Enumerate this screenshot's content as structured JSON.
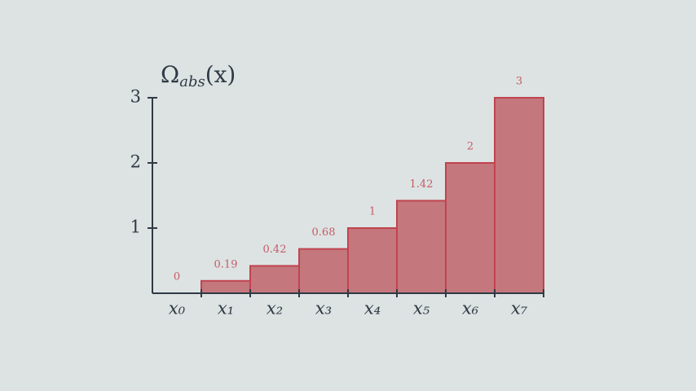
{
  "chart_data": {
    "type": "bar",
    "ylabel": "Ω",
    "ylabel_sub": "abs",
    "ylabel_rest": "(x)",
    "categories": [
      "x₀",
      "x₁",
      "x₂",
      "x₃",
      "x₄",
      "x₅",
      "x₆",
      "x₇"
    ],
    "values": [
      0,
      0.19,
      0.42,
      0.68,
      1,
      1.42,
      2,
      3
    ],
    "color": "#c4777d",
    "edge_color": "#c0444f",
    "label_color": "#c65a66",
    "ylim": [
      0,
      3
    ],
    "yticks": [
      1,
      2,
      3
    ],
    "grid": false
  }
}
